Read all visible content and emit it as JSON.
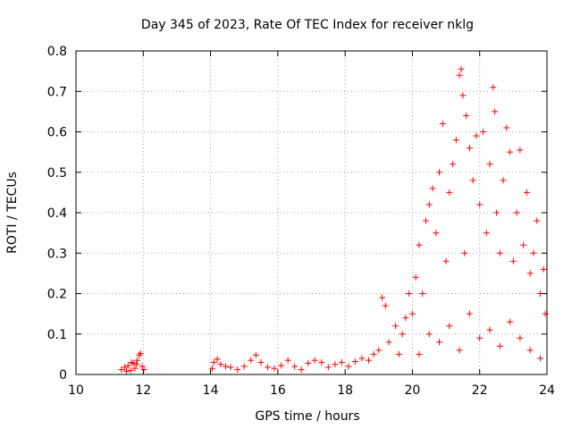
{
  "chart_data": {
    "type": "scatter",
    "title": "Day 345 of 2023, Rate Of TEC Index for receiver nklg",
    "xlabel": "GPS time / hours",
    "ylabel": "ROTI / TECUs",
    "xlim": [
      10,
      24
    ],
    "ylim": [
      0,
      0.8
    ],
    "xticks": [
      "10",
      "12",
      "14",
      "16",
      "18",
      "20",
      "22",
      "24"
    ],
    "yticks": [
      "0",
      "0.1",
      "0.2",
      "0.3",
      "0.4",
      "0.5",
      "0.6",
      "0.7",
      "0.8"
    ],
    "grid": true,
    "marker": "plus",
    "color": "#ff0000",
    "series": [
      {
        "name": "ROTI",
        "points": [
          [
            11.35,
            0.012
          ],
          [
            11.45,
            0.018
          ],
          [
            11.55,
            0.022
          ],
          [
            11.62,
            0.01
          ],
          [
            11.7,
            0.028
          ],
          [
            11.75,
            0.015
          ],
          [
            11.82,
            0.035
          ],
          [
            11.88,
            0.048
          ],
          [
            11.92,
            0.052
          ],
          [
            11.97,
            0.02
          ],
          [
            12.02,
            0.012
          ],
          [
            11.5,
            0.008
          ],
          [
            11.65,
            0.03
          ],
          [
            11.8,
            0.025
          ],
          [
            14.05,
            0.015
          ],
          [
            14.1,
            0.03
          ],
          [
            14.2,
            0.038
          ],
          [
            14.3,
            0.025
          ],
          [
            14.45,
            0.02
          ],
          [
            14.6,
            0.018
          ],
          [
            14.8,
            0.012
          ],
          [
            15.0,
            0.02
          ],
          [
            15.2,
            0.035
          ],
          [
            15.35,
            0.048
          ],
          [
            15.5,
            0.03
          ],
          [
            15.7,
            0.018
          ],
          [
            15.9,
            0.015
          ],
          [
            16.1,
            0.022
          ],
          [
            16.3,
            0.035
          ],
          [
            16.5,
            0.02
          ],
          [
            16.7,
            0.012
          ],
          [
            16.9,
            0.028
          ],
          [
            17.1,
            0.035
          ],
          [
            17.3,
            0.03
          ],
          [
            17.5,
            0.018
          ],
          [
            17.7,
            0.025
          ],
          [
            17.9,
            0.03
          ],
          [
            18.1,
            0.02
          ],
          [
            18.3,
            0.032
          ],
          [
            18.5,
            0.04
          ],
          [
            18.7,
            0.035
          ],
          [
            18.85,
            0.05
          ],
          [
            19.0,
            0.06
          ],
          [
            19.1,
            0.19
          ],
          [
            19.2,
            0.17
          ],
          [
            19.3,
            0.08
          ],
          [
            19.5,
            0.12
          ],
          [
            19.6,
            0.05
          ],
          [
            19.7,
            0.1
          ],
          [
            19.8,
            0.14
          ],
          [
            19.9,
            0.2
          ],
          [
            20.0,
            0.15
          ],
          [
            20.1,
            0.24
          ],
          [
            20.2,
            0.32
          ],
          [
            20.3,
            0.2
          ],
          [
            20.4,
            0.38
          ],
          [
            20.5,
            0.42
          ],
          [
            20.6,
            0.46
          ],
          [
            20.7,
            0.35
          ],
          [
            20.8,
            0.5
          ],
          [
            20.9,
            0.62
          ],
          [
            21.0,
            0.28
          ],
          [
            21.1,
            0.45
          ],
          [
            21.2,
            0.52
          ],
          [
            21.3,
            0.58
          ],
          [
            21.4,
            0.74
          ],
          [
            21.45,
            0.755
          ],
          [
            21.5,
            0.69
          ],
          [
            21.55,
            0.3
          ],
          [
            21.6,
            0.64
          ],
          [
            21.7,
            0.56
          ],
          [
            21.8,
            0.48
          ],
          [
            21.9,
            0.59
          ],
          [
            22.0,
            0.42
          ],
          [
            22.1,
            0.6
          ],
          [
            22.2,
            0.35
          ],
          [
            22.3,
            0.52
          ],
          [
            22.4,
            0.71
          ],
          [
            22.45,
            0.65
          ],
          [
            22.5,
            0.4
          ],
          [
            22.6,
            0.3
          ],
          [
            22.7,
            0.48
          ],
          [
            22.8,
            0.61
          ],
          [
            22.9,
            0.55
          ],
          [
            23.0,
            0.28
          ],
          [
            23.1,
            0.4
          ],
          [
            23.2,
            0.555
          ],
          [
            23.3,
            0.32
          ],
          [
            23.4,
            0.45
          ],
          [
            23.5,
            0.25
          ],
          [
            23.6,
            0.3
          ],
          [
            23.7,
            0.38
          ],
          [
            23.8,
            0.2
          ],
          [
            23.9,
            0.26
          ],
          [
            23.95,
            0.15
          ],
          [
            20.2,
            0.05
          ],
          [
            20.5,
            0.1
          ],
          [
            20.8,
            0.08
          ],
          [
            21.1,
            0.12
          ],
          [
            21.4,
            0.06
          ],
          [
            21.7,
            0.15
          ],
          [
            22.0,
            0.09
          ],
          [
            22.3,
            0.11
          ],
          [
            22.6,
            0.07
          ],
          [
            22.9,
            0.13
          ],
          [
            23.2,
            0.09
          ],
          [
            23.5,
            0.06
          ],
          [
            23.8,
            0.04
          ]
        ]
      }
    ]
  }
}
